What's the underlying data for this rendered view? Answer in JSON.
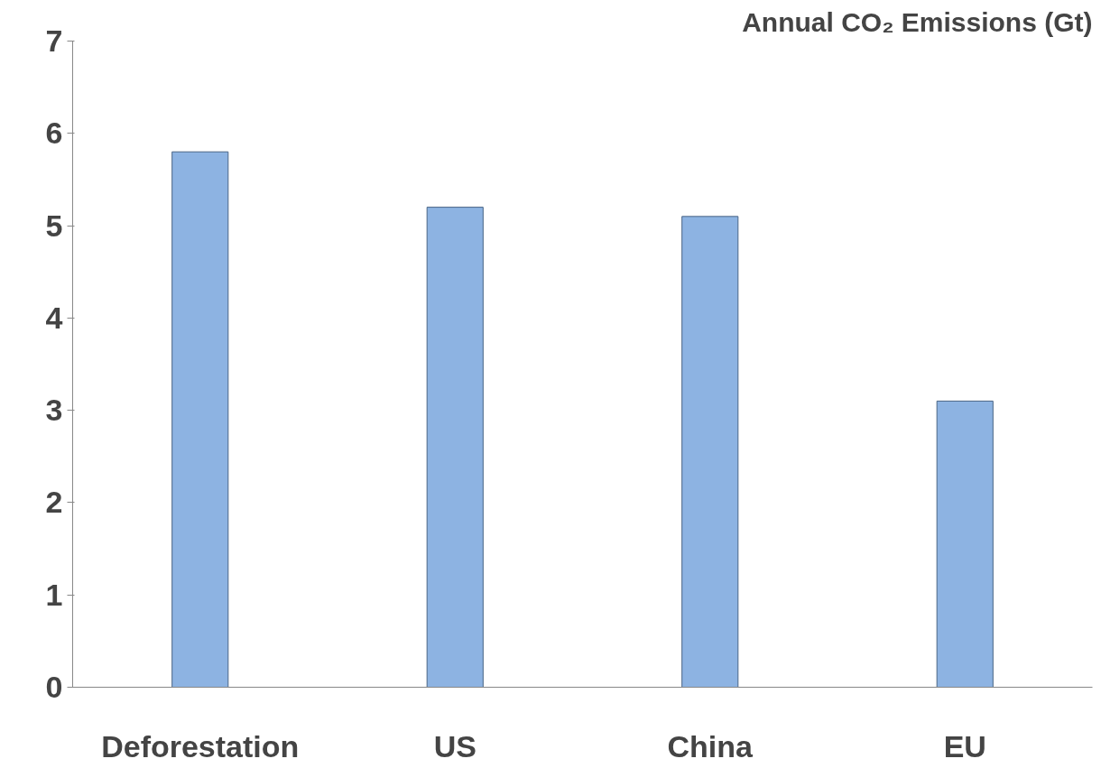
{
  "chart_data": {
    "type": "bar",
    "title": "Annual CO₂ Emissions (Gt)",
    "categories": [
      "Deforestation",
      "US",
      "China",
      "EU"
    ],
    "values": [
      5.8,
      5.2,
      5.1,
      3.1
    ],
    "color": "#8db3e2",
    "ylim": [
      0,
      7
    ],
    "yticks": [
      0,
      1,
      2,
      3,
      4,
      5,
      6,
      7
    ],
    "grid": false
  }
}
